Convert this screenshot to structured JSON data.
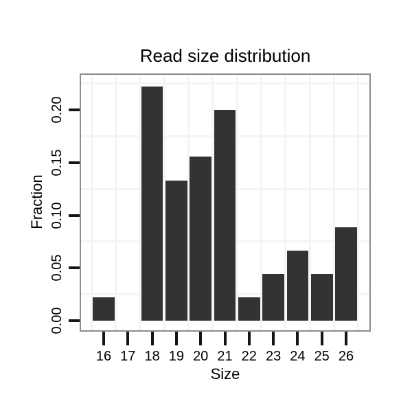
{
  "chart_data": {
    "type": "bar",
    "title": "Read size distribution",
    "xlabel": "Size",
    "ylabel": "Fraction",
    "categories": [
      16,
      17,
      18,
      19,
      20,
      21,
      22,
      23,
      24,
      25,
      26
    ],
    "values": [
      0.0222,
      0,
      0.2222,
      0.1333,
      0.1556,
      0.2,
      0.0222,
      0.0444,
      0.0667,
      0.0444,
      0.0889
    ],
    "x_tick_labels": [
      "16",
      "17",
      "18",
      "19",
      "20",
      "21",
      "22",
      "23",
      "24",
      "25",
      "26"
    ],
    "y_tick_labels": [
      "0.00",
      "0.05",
      "0.10",
      "0.15",
      "0.20"
    ],
    "y_tick_values": [
      0,
      0.05,
      0.1,
      0.15,
      0.2
    ],
    "ylim": [
      -0.009,
      0.234
    ],
    "grid": "minor-gridlines-only",
    "legend": "none",
    "colors": {
      "bar": "#333333",
      "panel_border": "#8c8c8c",
      "grid": "#f4f4f4",
      "tick": "#141414",
      "text": "#000000",
      "background": "#ffffff"
    }
  }
}
